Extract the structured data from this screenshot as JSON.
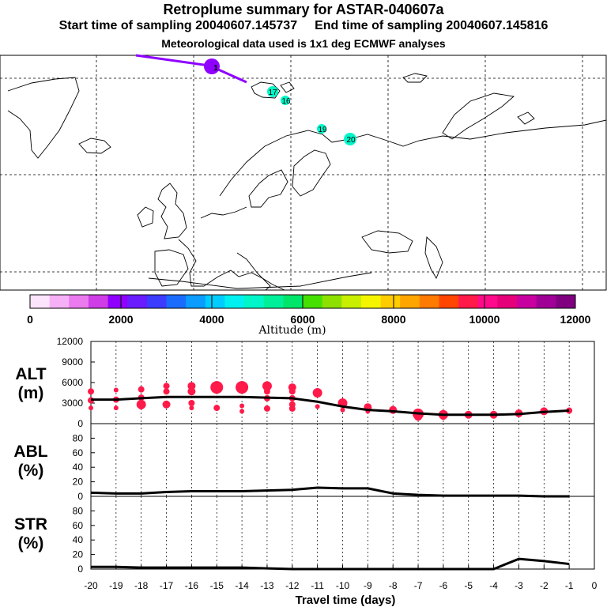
{
  "header": {
    "title": "Retroplume summary for ASTAR-040607a",
    "start_label": "Start time of sampling 20040607.145737",
    "end_label": "End time of sampling 20040607.145816",
    "met_label": "Meteorological data used is 1x1 deg ECMWF analyses"
  },
  "colorbar": {
    "label": "Altitude (m)",
    "tick_labels": [
      "0",
      "2000",
      "4000",
      "6000",
      "8000",
      "10000",
      "12000"
    ],
    "colors": [
      "#fde4fd",
      "#f6b0f6",
      "#eb7aee",
      "#cf3de6",
      "#8f00ff",
      "#6a1cff",
      "#3c3cff",
      "#1a6cff",
      "#0a9cff",
      "#00ccff",
      "#00f0f0",
      "#00f5c8",
      "#00f09a",
      "#00e66a",
      "#45e000",
      "#8ee000",
      "#c8ee00",
      "#f5f500",
      "#ffcc00",
      "#ffa500",
      "#ff7a00",
      "#ff4500",
      "#ff1a4a",
      "#ff0a8a",
      "#e6007a",
      "#c800a0",
      "#a00096",
      "#800080"
    ]
  },
  "map": {
    "trajectory_labels": [
      "1",
      "17",
      "16",
      "19",
      "20"
    ]
  },
  "chart_data": [
    {
      "type": "line",
      "name": "ALT",
      "ylabel": "ALT\n(m)",
      "ylabel_lines": [
        "ALT",
        "(m)"
      ],
      "ylim": [
        0,
        12000
      ],
      "yticks": [
        0,
        3000,
        6000,
        9000,
        12000
      ],
      "ytick_labels": [
        "0",
        "3000",
        "6000",
        "9000",
        "12000"
      ],
      "x": [
        -20,
        -19,
        -18,
        -17,
        -16,
        -15,
        -14,
        -13,
        -12,
        -11,
        -10,
        -9,
        -8,
        -7,
        -6,
        -5,
        -4,
        -3,
        -2,
        -1
      ],
      "values": [
        3500,
        3500,
        3700,
        3900,
        3900,
        3900,
        3900,
        3800,
        3700,
        3200,
        2500,
        2000,
        1800,
        1500,
        1300,
        1300,
        1300,
        1400,
        1700,
        1900
      ],
      "dots": [
        {
          "x": -20,
          "y": 4700,
          "r": 4
        },
        {
          "x": -20,
          "y": 3400,
          "r": 4
        },
        {
          "x": -20,
          "y": 2300,
          "r": 3
        },
        {
          "x": -19,
          "y": 4900,
          "r": 3
        },
        {
          "x": -19,
          "y": 3500,
          "r": 4
        },
        {
          "x": -19,
          "y": 2300,
          "r": 3
        },
        {
          "x": -18,
          "y": 5000,
          "r": 4
        },
        {
          "x": -18,
          "y": 3800,
          "r": 4
        },
        {
          "x": -18,
          "y": 2800,
          "r": 6
        },
        {
          "x": -18,
          "y": 2400,
          "r": 3
        },
        {
          "x": -17,
          "y": 5500,
          "r": 4
        },
        {
          "x": -17,
          "y": 4700,
          "r": 4
        },
        {
          "x": -17,
          "y": 2800,
          "r": 5
        },
        {
          "x": -16,
          "y": 5500,
          "r": 5
        },
        {
          "x": -16,
          "y": 4700,
          "r": 5
        },
        {
          "x": -16,
          "y": 3000,
          "r": 4
        },
        {
          "x": -16,
          "y": 2300,
          "r": 3
        },
        {
          "x": -15,
          "y": 5300,
          "r": 8
        },
        {
          "x": -15,
          "y": 2300,
          "r": 4
        },
        {
          "x": -14,
          "y": 5300,
          "r": 8
        },
        {
          "x": -14,
          "y": 2600,
          "r": 3
        },
        {
          "x": -14,
          "y": 1800,
          "r": 3
        },
        {
          "x": -13,
          "y": 5500,
          "r": 6
        },
        {
          "x": -13,
          "y": 4700,
          "r": 4
        },
        {
          "x": -13,
          "y": 3700,
          "r": 4
        },
        {
          "x": -13,
          "y": 2200,
          "r": 4
        },
        {
          "x": -12,
          "y": 5300,
          "r": 5
        },
        {
          "x": -12,
          "y": 4700,
          "r": 4
        },
        {
          "x": -12,
          "y": 3700,
          "r": 4
        },
        {
          "x": -12,
          "y": 2800,
          "r": 4
        },
        {
          "x": -12,
          "y": 2200,
          "r": 4
        },
        {
          "x": -11,
          "y": 4500,
          "r": 6
        },
        {
          "x": -11,
          "y": 2500,
          "r": 3
        },
        {
          "x": -10,
          "y": 3000,
          "r": 6
        },
        {
          "x": -10,
          "y": 2000,
          "r": 3
        },
        {
          "x": -9,
          "y": 2400,
          "r": 5
        },
        {
          "x": -9,
          "y": 1800,
          "r": 3
        },
        {
          "x": -8,
          "y": 2000,
          "r": 5
        },
        {
          "x": -7,
          "y": 1400,
          "r": 7
        },
        {
          "x": -7,
          "y": 1000,
          "r": 5
        },
        {
          "x": -6,
          "y": 1300,
          "r": 6
        },
        {
          "x": -6,
          "y": 1000,
          "r": 4
        },
        {
          "x": -5,
          "y": 1300,
          "r": 5
        },
        {
          "x": -4,
          "y": 1300,
          "r": 5
        },
        {
          "x": -3,
          "y": 1500,
          "r": 5
        },
        {
          "x": -2,
          "y": 1800,
          "r": 5
        },
        {
          "x": -1,
          "y": 1900,
          "r": 4
        }
      ]
    },
    {
      "type": "line",
      "name": "ABL",
      "ylabel": "ABL\n(%)",
      "ylabel_lines": [
        "ABL",
        "(%)"
      ],
      "ylim": [
        0,
        100
      ],
      "yticks": [
        0,
        20,
        40,
        60,
        80
      ],
      "ytick_labels": [
        "0",
        "20",
        "40",
        "60",
        "80"
      ],
      "x": [
        -20,
        -19,
        -18,
        -17,
        -16,
        -15,
        -14,
        -13,
        -12,
        -11,
        -10,
        -9,
        -8,
        -7,
        -6,
        -5,
        -4,
        -3,
        -2,
        -1
      ],
      "values": [
        5,
        4,
        4,
        6,
        7,
        7,
        7,
        8,
        9,
        12,
        11,
        11,
        4,
        2,
        1,
        1,
        1,
        1,
        0,
        0
      ]
    },
    {
      "type": "line",
      "name": "STR",
      "ylabel": "STR\n(%)",
      "ylabel_lines": [
        "STR",
        "(%)"
      ],
      "ylim": [
        0,
        100
      ],
      "yticks": [
        0,
        20,
        40,
        60,
        80
      ],
      "ytick_labels": [
        "0",
        "20",
        "40",
        "60",
        "80"
      ],
      "x": [
        -20,
        -19,
        -18,
        -17,
        -16,
        -15,
        -14,
        -13,
        -12,
        -11,
        -10,
        -9,
        -8,
        -7,
        -6,
        -5,
        -4,
        -3,
        -2,
        -1
      ],
      "values": [
        3,
        3,
        2,
        2,
        2,
        2,
        2,
        1,
        0,
        0,
        0,
        0,
        0,
        0,
        0,
        0,
        0,
        14,
        11,
        7
      ]
    }
  ],
  "xaxis": {
    "label": "Travel time (days)",
    "range": [
      -20,
      0
    ],
    "tick_labels": [
      "-20",
      "-19",
      "-18",
      "-17",
      "-16",
      "-15",
      "-14",
      "-13",
      "-12",
      "-11",
      "-10",
      "-9",
      "-8",
      "-7",
      "-6",
      "-5",
      "-4",
      "-3",
      "-2",
      "-1",
      "0"
    ]
  }
}
